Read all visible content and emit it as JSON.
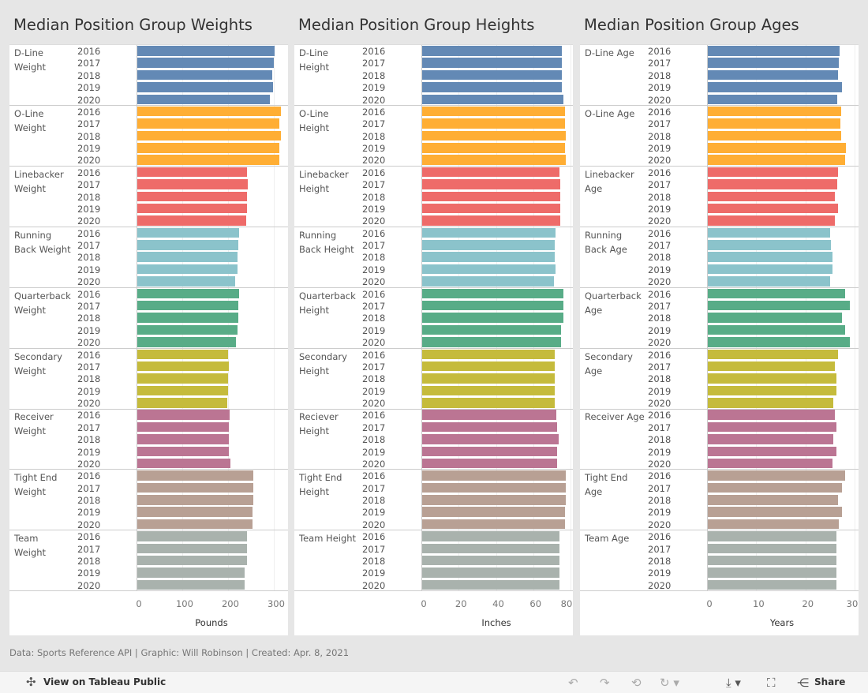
{
  "chart_data": [
    {
      "type": "bar",
      "orientation": "horizontal",
      "title": "Median Position Group Weights",
      "xlabel": "Pounds",
      "xlim": [
        0,
        326
      ],
      "ticks": [
        0,
        100,
        200,
        300
      ],
      "grid": true,
      "years": [
        "2016",
        "2017",
        "2018",
        "2019",
        "2020"
      ],
      "groups": [
        {
          "label": "D-Line\nWeight",
          "color": "#6389b5",
          "values": [
            301,
            300,
            296,
            298,
            291
          ]
        },
        {
          "label": "O-Line\nWeight",
          "color": "#ffae34",
          "values": [
            315,
            313,
            315,
            313,
            313
          ]
        },
        {
          "label": "Linebacker\nWeight",
          "color": "#ee6b69",
          "values": [
            241,
            244,
            241,
            241,
            239
          ]
        },
        {
          "label": "Running\nBack Weight",
          "color": "#8bc3cb",
          "values": [
            224,
            222,
            220,
            220,
            215
          ]
        },
        {
          "label": "Quarterback\nWeight",
          "color": "#58ac87",
          "values": [
            224,
            222,
            222,
            220,
            217
          ]
        },
        {
          "label": "Secondary\nWeight",
          "color": "#c5bb3c",
          "values": [
            200,
            201,
            200,
            200,
            198
          ]
        },
        {
          "label": "Receiver\nWeight",
          "color": "#bb7593",
          "values": [
            203,
            201,
            201,
            201,
            205
          ]
        },
        {
          "label": "Tight End\nWeight",
          "color": "#b8a094",
          "values": [
            255,
            256,
            255,
            253,
            253
          ]
        },
        {
          "label": "Team\nWeight",
          "color": "#a9b2ad",
          "values": [
            241,
            241,
            241,
            237,
            237
          ]
        }
      ]
    },
    {
      "type": "bar",
      "orientation": "horizontal",
      "title": "Median Position Group Heights",
      "xlabel": "Inches",
      "xlim": [
        0,
        80
      ],
      "ticks": [
        0,
        20,
        40,
        60,
        80
      ],
      "grid": true,
      "years": [
        "2016",
        "2017",
        "2018",
        "2019",
        "2020"
      ],
      "groups": [
        {
          "label": "D-Line\nHeight",
          "color": "#6389b5",
          "values": [
            75.5,
            75.5,
            75.5,
            75.5,
            76
          ]
        },
        {
          "label": "O-Line\nHeight",
          "color": "#ffae34",
          "values": [
            77,
            77,
            77.5,
            77,
            77.5
          ]
        },
        {
          "label": "Linebacker\nHeight",
          "color": "#ee6b69",
          "values": [
            74,
            74.5,
            74.5,
            74.5,
            74.5
          ]
        },
        {
          "label": "Running\nBack Height",
          "color": "#8bc3cb",
          "values": [
            72,
            71.5,
            71.5,
            72,
            71
          ]
        },
        {
          "label": "Quarterback\nHeight",
          "color": "#58ac87",
          "values": [
            76,
            76,
            76,
            75,
            75
          ]
        },
        {
          "label": "Secondary\nHeight",
          "color": "#c5bb3c",
          "values": [
            71.5,
            71.5,
            71.5,
            71.5,
            71.5
          ]
        },
        {
          "label": "Reciever\nHeight",
          "color": "#bb7593",
          "values": [
            72.5,
            73,
            73.5,
            73,
            73
          ]
        },
        {
          "label": "Tight End\nHeight",
          "color": "#b8a094",
          "values": [
            77.5,
            77.5,
            77.5,
            77,
            77
          ]
        },
        {
          "label": "Team Height",
          "color": "#a9b2ad",
          "values": [
            74,
            74,
            74,
            74,
            74
          ]
        }
      ]
    },
    {
      "type": "bar",
      "orientation": "horizontal",
      "title": "Median Position Group Ages",
      "xlabel": "Years",
      "xlim": [
        0,
        30.3
      ],
      "ticks": [
        0,
        10,
        20,
        30
      ],
      "grid": true,
      "years": [
        "2016",
        "2017",
        "2018",
        "2019",
        "2020"
      ],
      "groups": [
        {
          "label": "D-Line Age",
          "color": "#6389b5",
          "values": [
            27,
            26.8,
            26.6,
            27.4,
            26.5
          ]
        },
        {
          "label": "O-Line Age",
          "color": "#ffae34",
          "values": [
            27.3,
            27.1,
            27.3,
            28.2,
            28.1
          ]
        },
        {
          "label": "Linebacker\nAge",
          "color": "#ee6b69",
          "values": [
            26.6,
            26.5,
            26,
            26.6,
            26
          ]
        },
        {
          "label": "Running\nBack Age",
          "color": "#8bc3cb",
          "values": [
            25,
            25.2,
            25.5,
            25.5,
            25
          ]
        },
        {
          "label": "Quarterback\nAge",
          "color": "#58ac87",
          "values": [
            28.1,
            29,
            27.4,
            28.1,
            29
          ]
        },
        {
          "label": "Secondary\nAge",
          "color": "#c5bb3c",
          "values": [
            26.6,
            26,
            26.3,
            26.3,
            25.7
          ]
        },
        {
          "label": "Receiver Age",
          "color": "#bb7593",
          "values": [
            26,
            26.3,
            25.7,
            26.3,
            25.5
          ]
        },
        {
          "label": "Tight End\nAge",
          "color": "#b8a094",
          "values": [
            28.1,
            27.4,
            26.6,
            27.4,
            26.8
          ]
        },
        {
          "label": "Team Age",
          "color": "#a9b2ad",
          "values": [
            26.3,
            26.3,
            26.3,
            26.3,
            26.3
          ]
        }
      ]
    }
  ],
  "footer": "Data: Sports Reference API  |  Graphic: Will Robinson  |  Created: Apr. 8, 2021",
  "toolbar": {
    "view_label": "View on Tableau Public",
    "share_label": "Share",
    "icons": [
      "tableau-icon",
      "undo-icon",
      "redo-icon",
      "revert-icon",
      "refresh-icon",
      "download-icon",
      "fullscreen-icon",
      "share-icon"
    ]
  }
}
